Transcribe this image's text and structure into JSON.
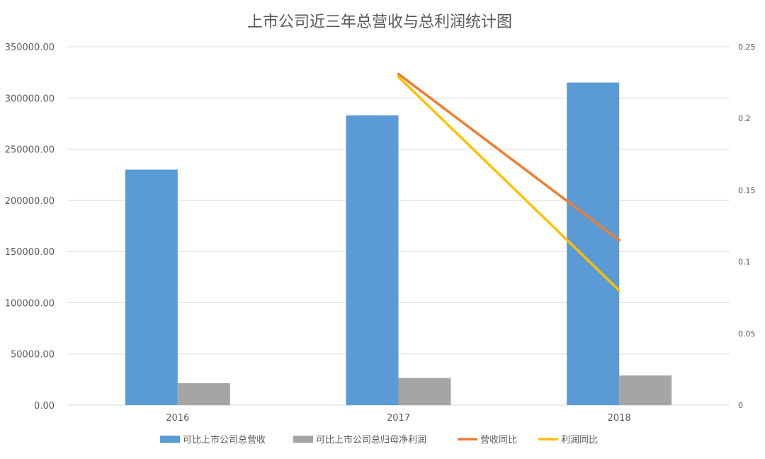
{
  "chart_data": {
    "type": "bar",
    "title": "上市公司近三年总营收与总利润统计图",
    "categories": [
      "2016",
      "2017",
      "2018"
    ],
    "y_left": {
      "min": 0,
      "max": 350000,
      "ticks": [
        "0.00",
        "50000.00",
        "100000.00",
        "150000.00",
        "200000.00",
        "250000.00",
        "300000.00",
        "350000.00"
      ]
    },
    "y_right": {
      "min": 0,
      "max": 0.25,
      "ticks": [
        "0",
        "0.05",
        "0.1",
        "0.15",
        "0.2",
        "0.25"
      ]
    },
    "bar_series": [
      {
        "name": "可比上市公司总营收",
        "color": "#5b9bd5",
        "values": [
          230000,
          283000,
          315000
        ]
      },
      {
        "name": "可比上市公司总归母净利润",
        "color": "#a5a5a5",
        "values": [
          21500,
          26500,
          29000
        ]
      }
    ],
    "line_series": [
      {
        "name": "营收同比",
        "color": "#ed7d31",
        "values": [
          null,
          0.231,
          0.115
        ]
      },
      {
        "name": "利润同比",
        "color": "#ffc000",
        "values": [
          null,
          0.229,
          0.08
        ]
      }
    ],
    "grid": true,
    "legend_position": "bottom"
  }
}
